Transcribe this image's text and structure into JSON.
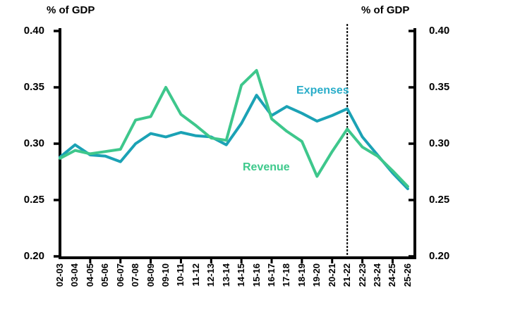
{
  "chart_data": {
    "type": "line",
    "title_left": "% of GDP",
    "title_right": "% of GDP",
    "categories": [
      "02-03",
      "03-04",
      "04-05",
      "05-06",
      "06-07",
      "07-08",
      "08-09",
      "09-10",
      "10-11",
      "11-12",
      "12-13",
      "13-14",
      "14-15",
      "15-16",
      "16-17",
      "17-18",
      "18-19",
      "19-20",
      "20-21",
      "21-22",
      "22-23",
      "23-24",
      "24-25",
      "25-26"
    ],
    "series": [
      {
        "name": "Expenses",
        "color": "#1ba2b5",
        "label_color": "#29adc9",
        "values": [
          0.288,
          0.299,
          0.29,
          0.289,
          0.284,
          0.3,
          0.309,
          0.306,
          0.31,
          0.307,
          0.306,
          0.299,
          0.318,
          0.343,
          0.325,
          0.333,
          0.327,
          0.32,
          0.325,
          0.331,
          0.306,
          0.29,
          0.274,
          0.26
        ]
      },
      {
        "name": "Revenue",
        "color": "#3ec78c",
        "label_color": "#3ec98c",
        "values": [
          0.287,
          0.294,
          0.291,
          0.293,
          0.295,
          0.321,
          0.324,
          0.35,
          0.326,
          0.316,
          0.305,
          0.303,
          0.352,
          0.365,
          0.322,
          0.311,
          0.302,
          0.271,
          0.293,
          0.313,
          0.297,
          0.289,
          0.276,
          0.262
        ]
      }
    ],
    "ylim": [
      0.2,
      0.4
    ],
    "y_tick_labels": [
      "0.40",
      "0.35",
      "0.30",
      "0.25",
      "0.20"
    ],
    "grid": "off",
    "legend": "inline-labels",
    "axis_color": "#000000",
    "annotation": {
      "type": "vertical-dotted-line",
      "category": "21-22",
      "color": "#000000"
    }
  }
}
